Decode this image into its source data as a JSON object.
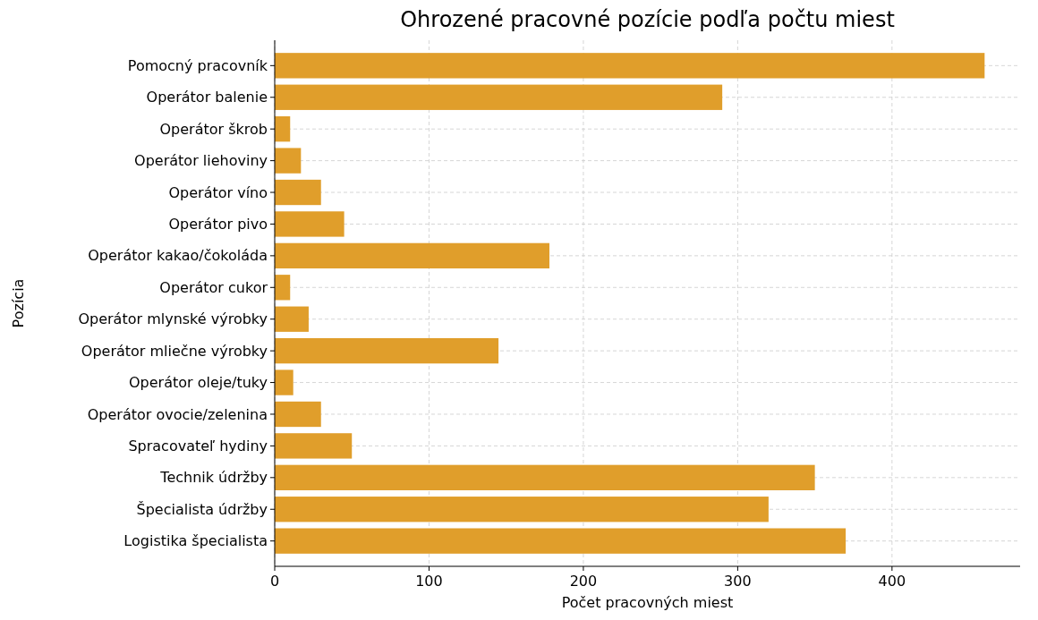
{
  "chart_data": {
    "type": "bar",
    "orientation": "horizontal",
    "title": "Ohrozené pracovné pozície podľa počtu miest",
    "xlabel": "Počet pracovných miest",
    "ylabel": "Pozícia",
    "categories": [
      "Pomocný pracovník",
      "Operátor balenie",
      "Operátor škrob",
      "Operátor liehoviny",
      "Operátor víno",
      "Operátor pivo",
      "Operátor kakao/čokoláda",
      "Operátor cukor",
      "Operátor mlynské výrobky",
      "Operátor mliečne výrobky",
      "Operátor oleje/tuky",
      "Operátor ovocie/zelenina",
      "Spracovateľ hydiny",
      "Technik údržby",
      "Špecialista údržby",
      "Logistika špecialista"
    ],
    "values": [
      460,
      290,
      10,
      17,
      30,
      45,
      178,
      10,
      22,
      145,
      12,
      30,
      50,
      350,
      320,
      370
    ],
    "color": "#e09e2b",
    "xlim": [
      0,
      483
    ],
    "xticks": [
      0,
      100,
      200,
      300,
      400
    ],
    "grid": true
  }
}
